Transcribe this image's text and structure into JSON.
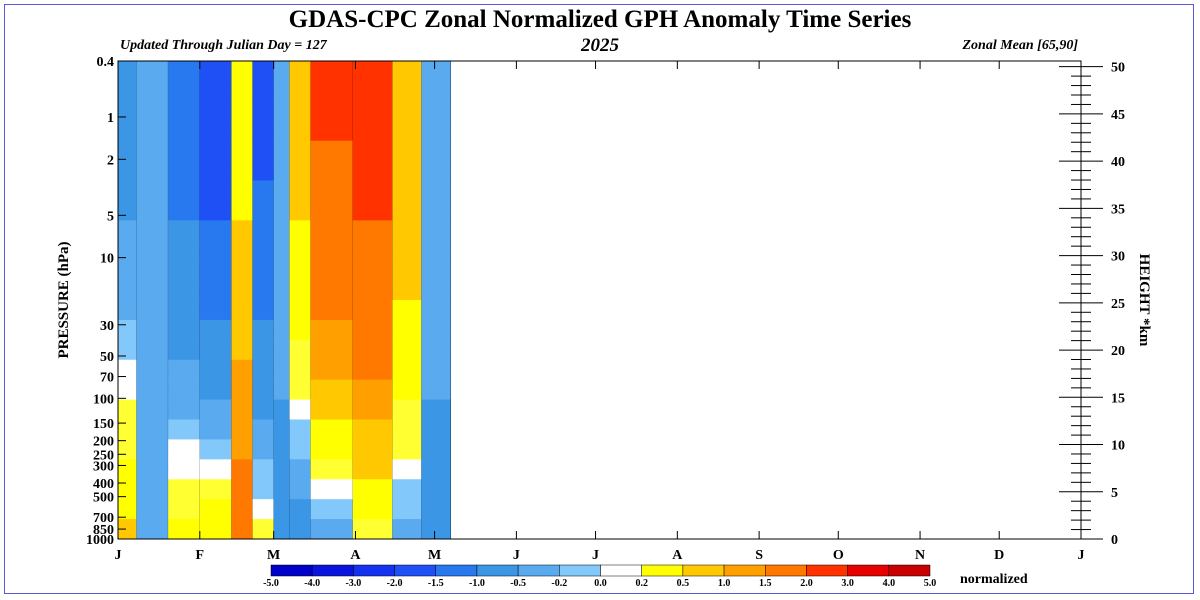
{
  "title": "GDAS-CPC Zonal Normalized GPH Anomaly Time Series",
  "subtitle_left": "Updated Through Julian Day = 127",
  "subtitle_center": "2025",
  "subtitle_right": "Zonal Mean [65,90]",
  "colorbar_units": "normalized",
  "chart_data": {
    "type": "heatmap",
    "xlabel": "",
    "ylabel": "PRESSURE (hPa)",
    "y2label": "HEIGHT *km",
    "x_month_ticks": [
      "J",
      "F",
      "M",
      "A",
      "M",
      "J",
      "J",
      "A",
      "S",
      "O",
      "N",
      "D",
      "J"
    ],
    "x_day_range": [
      1,
      366
    ],
    "data_last_day": 127,
    "y_pressure_ticks": [
      "0.4",
      "1",
      "2",
      "5",
      "10",
      "30",
      "50",
      "70",
      "100",
      "150",
      "200",
      "250",
      "300",
      "400",
      "500",
      "700",
      "850",
      "1000"
    ],
    "y_pressure_values": [
      0.4,
      1,
      2,
      5,
      10,
      30,
      50,
      70,
      100,
      150,
      200,
      250,
      300,
      400,
      500,
      700,
      850,
      1000
    ],
    "y2_height_ticks": [
      "50",
      "45",
      "40",
      "35",
      "30",
      "25",
      "20",
      "15",
      "10",
      "5",
      "0"
    ],
    "y2_height_values": [
      50,
      45,
      40,
      35,
      30,
      25,
      20,
      15,
      10,
      5,
      0
    ],
    "colorbar_levels": [
      "-5.0",
      "-4.0",
      "-3.0",
      "-2.0",
      "-1.5",
      "-1.0",
      "-0.5",
      "-0.2",
      "0.0",
      "0.2",
      "0.5",
      "1.0",
      "1.5",
      "2.0",
      "3.0",
      "4.0",
      "5.0"
    ],
    "colorbar_colors": [
      "#0000c8",
      "#0a14dc",
      "#1432f0",
      "#1e50f5",
      "#2878f0",
      "#3c96e6",
      "#5aaaf0",
      "#82c8fa",
      "#ffffff",
      "#ffffff",
      "#ffff00",
      "#ffc800",
      "#ffa000",
      "#ff7800",
      "#ff3200",
      "#e60000",
      "#c80000"
    ],
    "segments": [
      {
        "day_start": 1,
        "day_end": 8,
        "upper_value": -0.7,
        "lower_value": 1.0
      },
      {
        "day_start": 8,
        "day_end": 20,
        "upper_value": -0.4,
        "lower_value": -0.3
      },
      {
        "day_start": 20,
        "day_end": 32,
        "upper_value": -1.2,
        "lower_value": 0.6
      },
      {
        "day_start": 32,
        "day_end": 44,
        "upper_value": -1.8,
        "lower_value": 0.8
      },
      {
        "day_start": 44,
        "day_end": 52,
        "upper_value": 0.8,
        "lower_value": 2.5
      },
      {
        "day_start": 52,
        "day_end": 60,
        "upper_value": -1.6,
        "lower_value": 0.3
      },
      {
        "day_start": 60,
        "day_end": 66,
        "upper_value": -0.4,
        "lower_value": -0.6
      },
      {
        "day_start": 66,
        "day_end": 74,
        "upper_value": 1.2,
        "lower_value": -0.8
      },
      {
        "day_start": 74,
        "day_end": 90,
        "upper_value": 3.1,
        "lower_value": -0.5
      },
      {
        "day_start": 90,
        "day_end": 105,
        "upper_value": 3.3,
        "lower_value": 0.3
      },
      {
        "day_start": 105,
        "day_end": 116,
        "upper_value": 1.4,
        "lower_value": -0.3
      },
      {
        "day_start": 116,
        "day_end": 127,
        "upper_value": -0.4,
        "lower_value": -0.6
      }
    ]
  }
}
